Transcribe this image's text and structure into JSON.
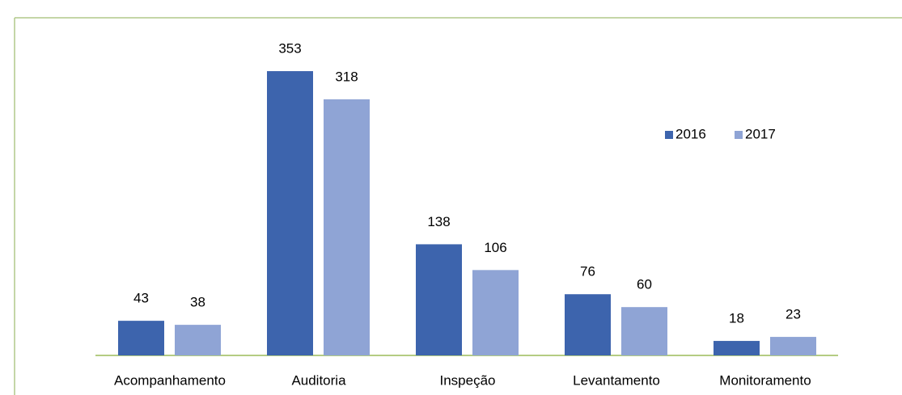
{
  "chart_data": {
    "type": "bar",
    "categories": [
      "Acompanhamento",
      "Auditoria",
      "Inspeção",
      "Levantamento",
      "Monitoramento"
    ],
    "series": [
      {
        "name": "2016",
        "color": "#3d64ad",
        "values": [
          43,
          353,
          138,
          76,
          18
        ]
      },
      {
        "name": "2017",
        "color": "#8fa4d5",
        "values": [
          38,
          318,
          106,
          60,
          23
        ]
      }
    ],
    "legend": "upper right"
  }
}
